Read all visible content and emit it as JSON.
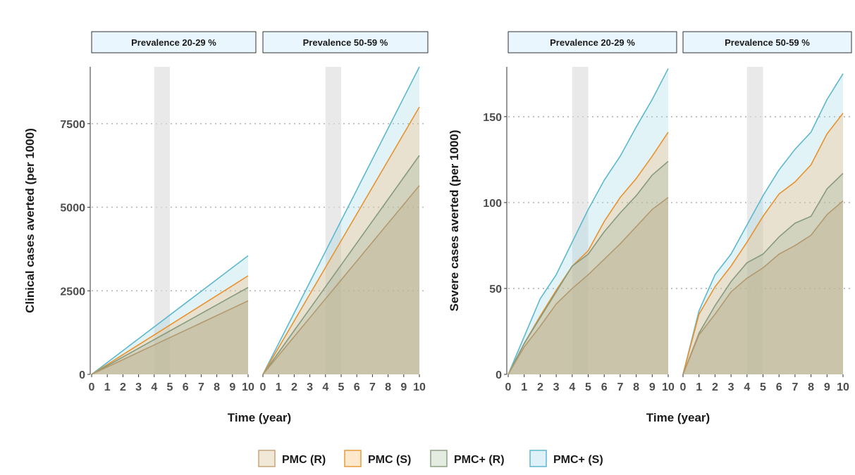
{
  "chart_data": [
    {
      "type": "area",
      "ylabel": "Clinical cases averted (per 1000)",
      "xlabel": "Time (year)",
      "ylim": [
        0,
        9200
      ],
      "yticks": [
        0,
        2500,
        5000,
        7500
      ],
      "x": [
        0,
        1,
        2,
        3,
        4,
        5,
        6,
        7,
        8,
        9,
        10
      ],
      "xlim": [
        0,
        10
      ],
      "shaded_interval": [
        4,
        5
      ],
      "grid": "dotted horizontal at y ticks",
      "panels": [
        {
          "label": "Prevalence 20-29 %",
          "series": [
            {
              "name": "PMC+ (S)",
              "values": [
                0,
                355,
                710,
                1065,
                1420,
                1775,
                2130,
                2485,
                2840,
                3195,
                3550
              ]
            },
            {
              "name": "PMC (S)",
              "values": [
                0,
                295,
                590,
                885,
                1180,
                1475,
                1770,
                2065,
                2360,
                2655,
                2950
              ]
            },
            {
              "name": "PMC+ (R)",
              "values": [
                0,
                260,
                520,
                780,
                1040,
                1300,
                1560,
                1820,
                2080,
                2340,
                2600
              ]
            },
            {
              "name": "PMC (R)",
              "values": [
                0,
                220,
                440,
                660,
                880,
                1100,
                1320,
                1540,
                1760,
                1980,
                2200
              ]
            }
          ]
        },
        {
          "label": "Prevalence 50-59 %",
          "series": [
            {
              "name": "PMC+ (S)",
              "values": [
                0,
                920,
                1840,
                2760,
                3680,
                4600,
                5520,
                6440,
                7360,
                8280,
                9200
              ]
            },
            {
              "name": "PMC (S)",
              "values": [
                0,
                800,
                1600,
                2400,
                3200,
                4000,
                4800,
                5600,
                6400,
                7200,
                8000
              ]
            },
            {
              "name": "PMC+ (R)",
              "values": [
                0,
                655,
                1310,
                1965,
                2620,
                3275,
                3930,
                4585,
                5240,
                5895,
                6550
              ]
            },
            {
              "name": "PMC (R)",
              "values": [
                0,
                565,
                1130,
                1695,
                2260,
                2825,
                3390,
                3955,
                4520,
                5085,
                5650
              ]
            }
          ]
        }
      ]
    },
    {
      "type": "area",
      "ylabel": "Severe cases averted (per 1000)",
      "xlabel": "Time (year)",
      "ylim": [
        0,
        179
      ],
      "yticks": [
        0,
        50,
        100,
        150
      ],
      "x": [
        0,
        1,
        2,
        3,
        4,
        5,
        6,
        7,
        8,
        9,
        10
      ],
      "xlim": [
        0,
        10
      ],
      "shaded_interval": [
        4,
        5
      ],
      "grid": "dotted horizontal at y ticks",
      "panels": [
        {
          "label": "Prevalence 20-29 %",
          "series": [
            {
              "name": "PMC+ (S)",
              "values": [
                0,
                22,
                44,
                58,
                77,
                96,
                113,
                127,
                144,
                160,
                178
              ]
            },
            {
              "name": "PMC (S)",
              "values": [
                0,
                18,
                34,
                49,
                63,
                72,
                89,
                103,
                114,
                127,
                141
              ]
            },
            {
              "name": "PMC+ (R)",
              "values": [
                0,
                18,
                33,
                48,
                63,
                70,
                83,
                94,
                104,
                116,
                124
              ]
            },
            {
              "name": "PMC (R)",
              "values": [
                0,
                16,
                28,
                41,
                50,
                58,
                67,
                76,
                86,
                96,
                103
              ]
            }
          ]
        },
        {
          "label": "Prevalence 50-59 %",
          "series": [
            {
              "name": "PMC+ (S)",
              "values": [
                0,
                37,
                58,
                70,
                87,
                104,
                119,
                131,
                141,
                160,
                175
              ]
            },
            {
              "name": "PMC (S)",
              "values": [
                0,
                35,
                51,
                63,
                77,
                92,
                105,
                112,
                122,
                140,
                152
              ]
            },
            {
              "name": "PMC+ (R)",
              "values": [
                0,
                24,
                40,
                54,
                65,
                70,
                80,
                88,
                92,
                108,
                117
              ]
            },
            {
              "name": "PMC (R)",
              "values": [
                0,
                23,
                35,
                48,
                56,
                62,
                70,
                75,
                81,
                93,
                101
              ]
            }
          ]
        }
      ]
    }
  ],
  "legend": {
    "placement": "bottom",
    "items": [
      {
        "name": "PMC (R)",
        "stroke": "#c4a57a",
        "fill": "#f2e8d8"
      },
      {
        "name": "PMC (S)",
        "stroke": "#ec9a3c",
        "fill": "#fde8cc"
      },
      {
        "name": "PMC+ (R)",
        "stroke": "#8d9f84",
        "fill": "#e4ebe0"
      },
      {
        "name": "PMC+ (S)",
        "stroke": "#5cb8cf",
        "fill": "#dff1f8"
      }
    ]
  },
  "colors": {
    "series": {
      "PMC (R)": {
        "stroke": "#b3996f",
        "fill": "#c9b58f",
        "fill_opacity": 0.3
      },
      "PMC (S)": {
        "stroke": "#e8922e",
        "fill": "#f6b873",
        "fill_opacity": 0.3
      },
      "PMC+ (R)": {
        "stroke": "#869a7e",
        "fill": "#9fb39a",
        "fill_opacity": 0.3
      },
      "PMC+ (S)": {
        "stroke": "#5cb8cf",
        "fill": "#9ed6e6",
        "fill_opacity": 0.3
      },
      "base": {
        "fill": "#bdb798",
        "fill_opacity": 0.25
      }
    },
    "strip_fill": "#eaf6fd",
    "strip_border": "#333333",
    "highlight": "#dddddd",
    "grid": "#b3b3b3"
  }
}
